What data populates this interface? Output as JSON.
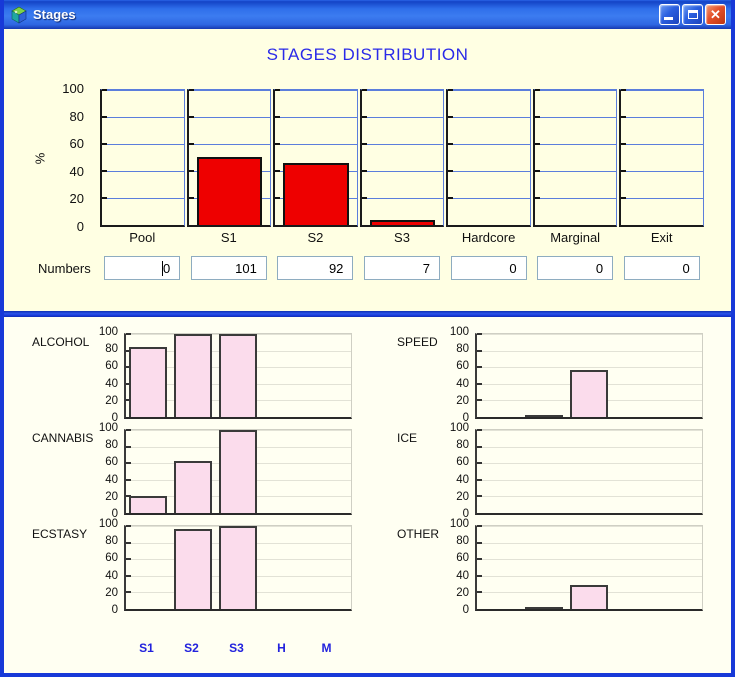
{
  "window": {
    "title": "Stages",
    "controls": {
      "close_glyph": "✕"
    }
  },
  "colors": {
    "window_border": "#1739d8",
    "top_background": "#ffffe3",
    "bottom_background": "#fffff2",
    "heading_blue": "#2a2ae8",
    "grid_blue": "#5b7edc",
    "stage_bar_red": "#ee0000",
    "mini_bar_pink": "#fbdcec",
    "x_label_blue": "#2222dd"
  },
  "top_section": {
    "heading": "STAGES DISTRIBUTION",
    "numbers_label": "Numbers",
    "caret_field_index": 0
  },
  "bottom_x_labels": [
    "S1",
    "S2",
    "S3",
    "H",
    "M"
  ],
  "chart_data": [
    {
      "id": "stages-distribution",
      "type": "bar",
      "title": "STAGES DISTRIBUTION",
      "ylabel": "%",
      "ylim": [
        0,
        100
      ],
      "y_ticks": [
        100,
        80,
        60,
        40,
        20,
        0
      ],
      "grid": true,
      "categories": [
        "Pool",
        "S1",
        "S2",
        "S3",
        "Hardcore",
        "Marginal",
        "Exit"
      ],
      "values": [
        0,
        50.5,
        46,
        3.5,
        0,
        0,
        0
      ],
      "numbers": [
        0,
        101,
        92,
        7,
        0,
        0,
        0
      ],
      "bar_color": "#ee0000"
    },
    {
      "id": "alcohol",
      "type": "bar",
      "title": "ALCOHOL",
      "column": "left",
      "ylim": [
        0,
        100
      ],
      "y_ticks": [
        100,
        80,
        60,
        40,
        20,
        0
      ],
      "categories": [
        "S1",
        "S2",
        "S3",
        "H",
        "M"
      ],
      "values": [
        84,
        100,
        100,
        0,
        0
      ],
      "bar_color": "#fbdcec"
    },
    {
      "id": "cannabis",
      "type": "bar",
      "title": "CANNABIS",
      "column": "left",
      "ylim": [
        0,
        100
      ],
      "y_ticks": [
        100,
        80,
        60,
        40,
        20,
        0
      ],
      "categories": [
        "S1",
        "S2",
        "S3",
        "H",
        "M"
      ],
      "values": [
        20,
        63,
        100,
        0,
        0
      ],
      "bar_color": "#fbdcec"
    },
    {
      "id": "ecstasy",
      "type": "bar",
      "title": "ECSTASY",
      "column": "left",
      "ylim": [
        0,
        100
      ],
      "y_ticks": [
        100,
        80,
        60,
        40,
        20,
        0
      ],
      "categories": [
        "S1",
        "S2",
        "S3",
        "H",
        "M"
      ],
      "values": [
        0,
        97,
        100,
        0,
        0
      ],
      "bar_color": "#fbdcec"
    },
    {
      "id": "speed",
      "type": "bar",
      "title": "SPEED",
      "column": "right",
      "ylim": [
        0,
        100
      ],
      "y_ticks": [
        100,
        80,
        60,
        40,
        20,
        0
      ],
      "categories": [
        "S1",
        "S2",
        "S3",
        "H",
        "M"
      ],
      "values": [
        0,
        3,
        57,
        0,
        0
      ],
      "bar_color": "#fbdcec"
    },
    {
      "id": "ice",
      "type": "bar",
      "title": "ICE",
      "column": "right",
      "ylim": [
        0,
        100
      ],
      "y_ticks": [
        100,
        80,
        60,
        40,
        20,
        0
      ],
      "categories": [
        "S1",
        "S2",
        "S3",
        "H",
        "M"
      ],
      "values": [
        0,
        0,
        0,
        0,
        0
      ],
      "bar_color": "#fbdcec"
    },
    {
      "id": "other",
      "type": "bar",
      "title": "OTHER",
      "column": "right",
      "ylim": [
        0,
        100
      ],
      "y_ticks": [
        100,
        80,
        60,
        40,
        20,
        0
      ],
      "categories": [
        "S1",
        "S2",
        "S3",
        "H",
        "M"
      ],
      "values": [
        0,
        2,
        29,
        0,
        0
      ],
      "bar_color": "#fbdcec"
    }
  ]
}
